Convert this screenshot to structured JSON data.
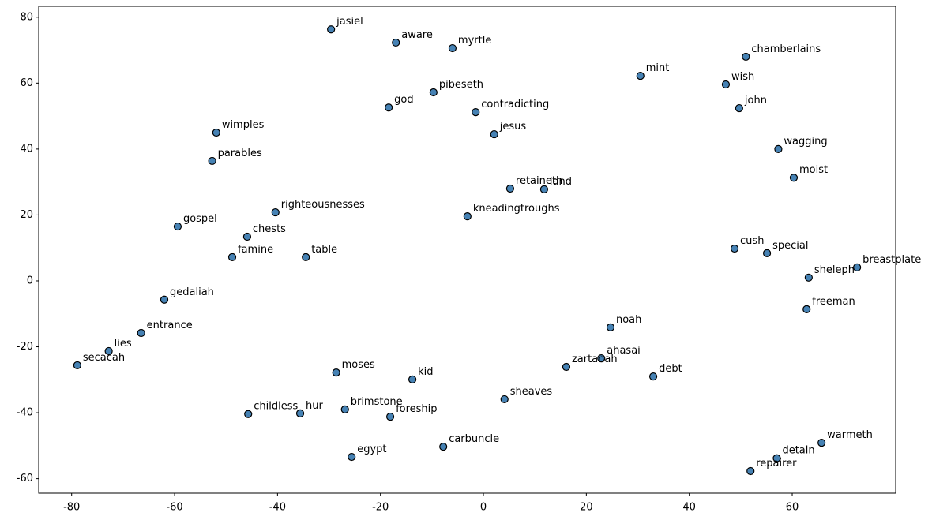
{
  "chart_data": {
    "type": "scatter",
    "color": "#4682b4",
    "edgecolor": "#000000",
    "labels": [
      "jasiel",
      "aware",
      "myrtle",
      "chamberlains",
      "mint",
      "wish",
      "pibeseth",
      "john",
      "god",
      "contradicting",
      "jesus",
      "wimples",
      "wagging",
      "parables",
      "moist",
      "retaineth",
      "land",
      "righteousnesses",
      "kneadingtroughs",
      "gospel",
      "chests",
      "cush",
      "special",
      "famine",
      "table",
      "breastplate",
      "sheleph",
      "gedaliah",
      "freeman",
      "noah",
      "entrance",
      "lies",
      "ahasai",
      "secacah",
      "zartanah",
      "moses",
      "debt",
      "kid",
      "sheaves",
      "brimstone",
      "childless",
      "hur",
      "foreship",
      "carbuncle",
      "warmeth",
      "egypt",
      "detain",
      "repairer"
    ],
    "x": [
      -29.6,
      -17.0,
      -6.0,
      51.0,
      30.5,
      47.1,
      -9.7,
      49.7,
      -18.4,
      -1.5,
      2.1,
      -51.9,
      57.3,
      -52.7,
      60.3,
      5.2,
      11.8,
      -40.4,
      -3.1,
      -59.4,
      -45.9,
      48.8,
      55.1,
      -48.8,
      -34.5,
      72.6,
      63.2,
      -62.0,
      62.8,
      24.7,
      -66.5,
      -72.8,
      22.9,
      -78.9,
      16.1,
      -28.6,
      33.0,
      -13.8,
      4.1,
      -26.9,
      -45.7,
      -35.6,
      -18.1,
      -7.8,
      65.7,
      -25.6,
      57.0,
      51.9
    ],
    "values": [
      76.3,
      72.3,
      70.6,
      68.0,
      62.2,
      59.6,
      57.2,
      52.4,
      52.6,
      51.2,
      44.5,
      45.0,
      40.0,
      36.4,
      31.3,
      28.0,
      27.8,
      20.8,
      19.6,
      16.5,
      13.4,
      9.8,
      8.4,
      7.2,
      7.2,
      4.1,
      1.0,
      -5.7,
      -8.6,
      -14.1,
      -15.8,
      -21.3,
      -23.5,
      -25.6,
      -26.1,
      -27.8,
      -29.0,
      -29.9,
      -35.9,
      -39.0,
      -40.4,
      -40.2,
      -41.2,
      -50.3,
      -49.1,
      -53.4,
      -53.8,
      -57.7
    ],
    "xlim": [
      -86.4,
      80.1
    ],
    "xticks": [
      -80,
      -60,
      -40,
      -20,
      0,
      20,
      40,
      60
    ],
    "ylim": [
      -64.4,
      83.3
    ],
    "yticks": [
      -60,
      -40,
      -20,
      0,
      20,
      40,
      60,
      80
    ]
  }
}
